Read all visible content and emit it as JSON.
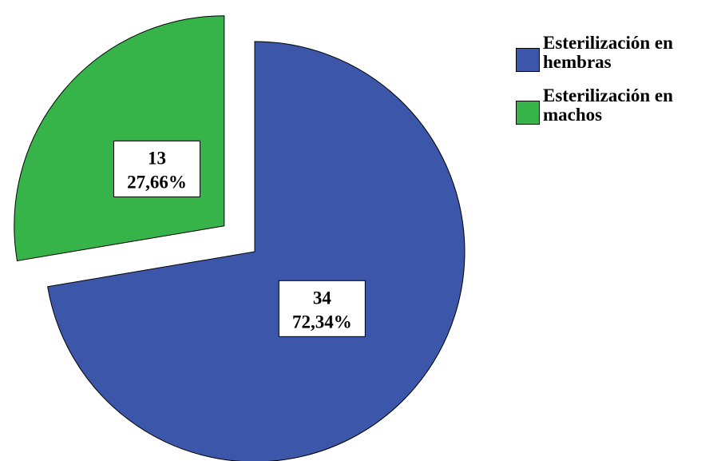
{
  "chart_data": {
    "type": "pie",
    "title": "",
    "series": [
      {
        "categories": [
          "Esterilización en hembras",
          "Esterilización en machos"
        ],
        "values": [
          34,
          13
        ],
        "percent_labels": [
          "72,34%",
          "27,66%"
        ],
        "colors": [
          "#3c56a9",
          "#36b44a"
        ],
        "exploded": [
          false,
          true
        ]
      }
    ],
    "legend": {
      "position": "top-right",
      "entries": [
        "Esterilización en hembras",
        "Esterilización en machos"
      ]
    }
  }
}
